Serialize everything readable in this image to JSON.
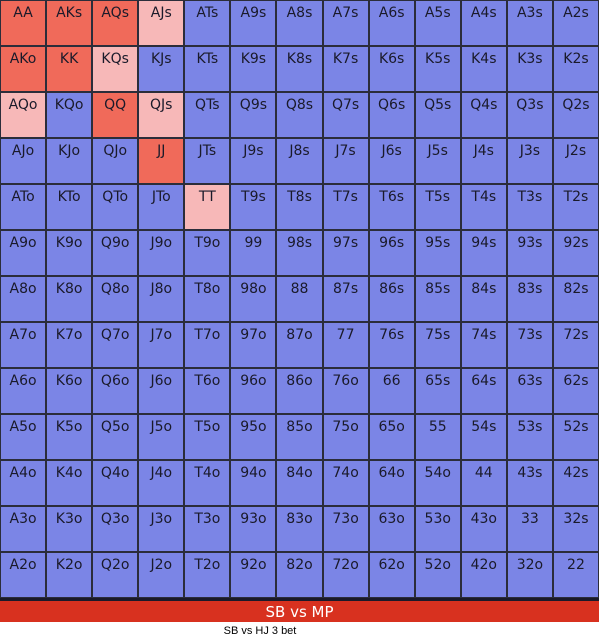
{
  "title": "SB vs MP",
  "caption": "SB vs HJ 3 bet",
  "colors": {
    "raise": "#f06a5a",
    "mixed": "#f7b8b8",
    "fold": "#7b85e6"
  },
  "grid": [
    [
      {
        "hand": "AA",
        "action": "raise"
      },
      {
        "hand": "AKs",
        "action": "raise"
      },
      {
        "hand": "AQs",
        "action": "raise"
      },
      {
        "hand": "AJs",
        "action": "mixed"
      },
      {
        "hand": "ATs",
        "action": "fold"
      },
      {
        "hand": "A9s",
        "action": "fold"
      },
      {
        "hand": "A8s",
        "action": "fold"
      },
      {
        "hand": "A7s",
        "action": "fold"
      },
      {
        "hand": "A6s",
        "action": "fold"
      },
      {
        "hand": "A5s",
        "action": "fold"
      },
      {
        "hand": "A4s",
        "action": "fold"
      },
      {
        "hand": "A3s",
        "action": "fold"
      },
      {
        "hand": "A2s",
        "action": "fold"
      }
    ],
    [
      {
        "hand": "AKo",
        "action": "raise"
      },
      {
        "hand": "KK",
        "action": "raise"
      },
      {
        "hand": "KQs",
        "action": "mixed"
      },
      {
        "hand": "KJs",
        "action": "fold"
      },
      {
        "hand": "KTs",
        "action": "fold"
      },
      {
        "hand": "K9s",
        "action": "fold"
      },
      {
        "hand": "K8s",
        "action": "fold"
      },
      {
        "hand": "K7s",
        "action": "fold"
      },
      {
        "hand": "K6s",
        "action": "fold"
      },
      {
        "hand": "K5s",
        "action": "fold"
      },
      {
        "hand": "K4s",
        "action": "fold"
      },
      {
        "hand": "K3s",
        "action": "fold"
      },
      {
        "hand": "K2s",
        "action": "fold"
      }
    ],
    [
      {
        "hand": "AQo",
        "action": "mixed"
      },
      {
        "hand": "KQo",
        "action": "fold"
      },
      {
        "hand": "QQ",
        "action": "raise"
      },
      {
        "hand": "QJs",
        "action": "mixed"
      },
      {
        "hand": "QTs",
        "action": "fold"
      },
      {
        "hand": "Q9s",
        "action": "fold"
      },
      {
        "hand": "Q8s",
        "action": "fold"
      },
      {
        "hand": "Q7s",
        "action": "fold"
      },
      {
        "hand": "Q6s",
        "action": "fold"
      },
      {
        "hand": "Q5s",
        "action": "fold"
      },
      {
        "hand": "Q4s",
        "action": "fold"
      },
      {
        "hand": "Q3s",
        "action": "fold"
      },
      {
        "hand": "Q2s",
        "action": "fold"
      }
    ],
    [
      {
        "hand": "AJo",
        "action": "fold"
      },
      {
        "hand": "KJo",
        "action": "fold"
      },
      {
        "hand": "QJo",
        "action": "fold"
      },
      {
        "hand": "JJ",
        "action": "raise"
      },
      {
        "hand": "JTs",
        "action": "fold"
      },
      {
        "hand": "J9s",
        "action": "fold"
      },
      {
        "hand": "J8s",
        "action": "fold"
      },
      {
        "hand": "J7s",
        "action": "fold"
      },
      {
        "hand": "J6s",
        "action": "fold"
      },
      {
        "hand": "J5s",
        "action": "fold"
      },
      {
        "hand": "J4s",
        "action": "fold"
      },
      {
        "hand": "J3s",
        "action": "fold"
      },
      {
        "hand": "J2s",
        "action": "fold"
      }
    ],
    [
      {
        "hand": "ATo",
        "action": "fold"
      },
      {
        "hand": "KTo",
        "action": "fold"
      },
      {
        "hand": "QTo",
        "action": "fold"
      },
      {
        "hand": "JTo",
        "action": "fold"
      },
      {
        "hand": "TT",
        "action": "mixed"
      },
      {
        "hand": "T9s",
        "action": "fold"
      },
      {
        "hand": "T8s",
        "action": "fold"
      },
      {
        "hand": "T7s",
        "action": "fold"
      },
      {
        "hand": "T6s",
        "action": "fold"
      },
      {
        "hand": "T5s",
        "action": "fold"
      },
      {
        "hand": "T4s",
        "action": "fold"
      },
      {
        "hand": "T3s",
        "action": "fold"
      },
      {
        "hand": "T2s",
        "action": "fold"
      }
    ],
    [
      {
        "hand": "A9o",
        "action": "fold"
      },
      {
        "hand": "K9o",
        "action": "fold"
      },
      {
        "hand": "Q9o",
        "action": "fold"
      },
      {
        "hand": "J9o",
        "action": "fold"
      },
      {
        "hand": "T9o",
        "action": "fold"
      },
      {
        "hand": "99",
        "action": "fold"
      },
      {
        "hand": "98s",
        "action": "fold"
      },
      {
        "hand": "97s",
        "action": "fold"
      },
      {
        "hand": "96s",
        "action": "fold"
      },
      {
        "hand": "95s",
        "action": "fold"
      },
      {
        "hand": "94s",
        "action": "fold"
      },
      {
        "hand": "93s",
        "action": "fold"
      },
      {
        "hand": "92s",
        "action": "fold"
      }
    ],
    [
      {
        "hand": "A8o",
        "action": "fold"
      },
      {
        "hand": "K8o",
        "action": "fold"
      },
      {
        "hand": "Q8o",
        "action": "fold"
      },
      {
        "hand": "J8o",
        "action": "fold"
      },
      {
        "hand": "T8o",
        "action": "fold"
      },
      {
        "hand": "98o",
        "action": "fold"
      },
      {
        "hand": "88",
        "action": "fold"
      },
      {
        "hand": "87s",
        "action": "fold"
      },
      {
        "hand": "86s",
        "action": "fold"
      },
      {
        "hand": "85s",
        "action": "fold"
      },
      {
        "hand": "84s",
        "action": "fold"
      },
      {
        "hand": "83s",
        "action": "fold"
      },
      {
        "hand": "82s",
        "action": "fold"
      }
    ],
    [
      {
        "hand": "A7o",
        "action": "fold"
      },
      {
        "hand": "K7o",
        "action": "fold"
      },
      {
        "hand": "Q7o",
        "action": "fold"
      },
      {
        "hand": "J7o",
        "action": "fold"
      },
      {
        "hand": "T7o",
        "action": "fold"
      },
      {
        "hand": "97o",
        "action": "fold"
      },
      {
        "hand": "87o",
        "action": "fold"
      },
      {
        "hand": "77",
        "action": "fold"
      },
      {
        "hand": "76s",
        "action": "fold"
      },
      {
        "hand": "75s",
        "action": "fold"
      },
      {
        "hand": "74s",
        "action": "fold"
      },
      {
        "hand": "73s",
        "action": "fold"
      },
      {
        "hand": "72s",
        "action": "fold"
      }
    ],
    [
      {
        "hand": "A6o",
        "action": "fold"
      },
      {
        "hand": "K6o",
        "action": "fold"
      },
      {
        "hand": "Q6o",
        "action": "fold"
      },
      {
        "hand": "J6o",
        "action": "fold"
      },
      {
        "hand": "T6o",
        "action": "fold"
      },
      {
        "hand": "96o",
        "action": "fold"
      },
      {
        "hand": "86o",
        "action": "fold"
      },
      {
        "hand": "76o",
        "action": "fold"
      },
      {
        "hand": "66",
        "action": "fold"
      },
      {
        "hand": "65s",
        "action": "fold"
      },
      {
        "hand": "64s",
        "action": "fold"
      },
      {
        "hand": "63s",
        "action": "fold"
      },
      {
        "hand": "62s",
        "action": "fold"
      }
    ],
    [
      {
        "hand": "A5o",
        "action": "fold"
      },
      {
        "hand": "K5o",
        "action": "fold"
      },
      {
        "hand": "Q5o",
        "action": "fold"
      },
      {
        "hand": "J5o",
        "action": "fold"
      },
      {
        "hand": "T5o",
        "action": "fold"
      },
      {
        "hand": "95o",
        "action": "fold"
      },
      {
        "hand": "85o",
        "action": "fold"
      },
      {
        "hand": "75o",
        "action": "fold"
      },
      {
        "hand": "65o",
        "action": "fold"
      },
      {
        "hand": "55",
        "action": "fold"
      },
      {
        "hand": "54s",
        "action": "fold"
      },
      {
        "hand": "53s",
        "action": "fold"
      },
      {
        "hand": "52s",
        "action": "fold"
      }
    ],
    [
      {
        "hand": "A4o",
        "action": "fold"
      },
      {
        "hand": "K4o",
        "action": "fold"
      },
      {
        "hand": "Q4o",
        "action": "fold"
      },
      {
        "hand": "J4o",
        "action": "fold"
      },
      {
        "hand": "T4o",
        "action": "fold"
      },
      {
        "hand": "94o",
        "action": "fold"
      },
      {
        "hand": "84o",
        "action": "fold"
      },
      {
        "hand": "74o",
        "action": "fold"
      },
      {
        "hand": "64o",
        "action": "fold"
      },
      {
        "hand": "54o",
        "action": "fold"
      },
      {
        "hand": "44",
        "action": "fold"
      },
      {
        "hand": "43s",
        "action": "fold"
      },
      {
        "hand": "42s",
        "action": "fold"
      }
    ],
    [
      {
        "hand": "A3o",
        "action": "fold"
      },
      {
        "hand": "K3o",
        "action": "fold"
      },
      {
        "hand": "Q3o",
        "action": "fold"
      },
      {
        "hand": "J3o",
        "action": "fold"
      },
      {
        "hand": "T3o",
        "action": "fold"
      },
      {
        "hand": "93o",
        "action": "fold"
      },
      {
        "hand": "83o",
        "action": "fold"
      },
      {
        "hand": "73o",
        "action": "fold"
      },
      {
        "hand": "63o",
        "action": "fold"
      },
      {
        "hand": "53o",
        "action": "fold"
      },
      {
        "hand": "43o",
        "action": "fold"
      },
      {
        "hand": "33",
        "action": "fold"
      },
      {
        "hand": "32s",
        "action": "fold"
      }
    ],
    [
      {
        "hand": "A2o",
        "action": "fold"
      },
      {
        "hand": "K2o",
        "action": "fold"
      },
      {
        "hand": "Q2o",
        "action": "fold"
      },
      {
        "hand": "J2o",
        "action": "fold"
      },
      {
        "hand": "T2o",
        "action": "fold"
      },
      {
        "hand": "92o",
        "action": "fold"
      },
      {
        "hand": "82o",
        "action": "fold"
      },
      {
        "hand": "72o",
        "action": "fold"
      },
      {
        "hand": "62o",
        "action": "fold"
      },
      {
        "hand": "52o",
        "action": "fold"
      },
      {
        "hand": "42o",
        "action": "fold"
      },
      {
        "hand": "32o",
        "action": "fold"
      },
      {
        "hand": "22",
        "action": "fold"
      }
    ]
  ]
}
